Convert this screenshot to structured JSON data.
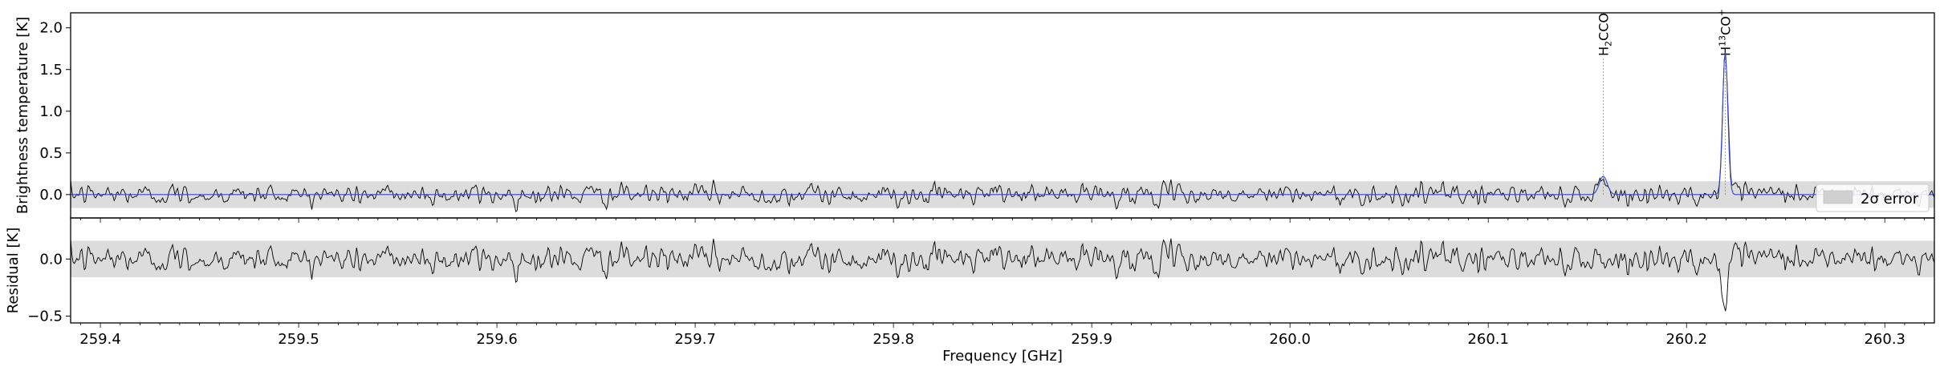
{
  "chart_data": [
    {
      "type": "line",
      "panel": "spectrum",
      "xlabel": "Frequency [GHz]",
      "ylabel": "Brightness temperature [K]",
      "xlim": [
        259.385,
        260.325
      ],
      "ylim": [
        -0.28,
        2.18
      ],
      "yticks": [
        0.0,
        0.5,
        1.0,
        1.5,
        2.0
      ],
      "ytick_labels": [
        "0.0",
        "0.5",
        "1.0",
        "1.5",
        "2.0"
      ],
      "error_band": 0.16,
      "noise_rms": 0.065,
      "legend": {
        "entries": [
          "2σ error"
        ],
        "placement": "right"
      },
      "spectral_lines": [
        {
          "label_base": "H",
          "label_sub": "2",
          "label_rest": "CCO",
          "frequency": 260.158,
          "peak": 0.22,
          "width": 0.002
        },
        {
          "label_base": "H",
          "label_sup": "13",
          "label_rest": "CO",
          "label_charge": "+",
          "frequency": 260.2195,
          "peak": 1.72,
          "width": 0.0013
        }
      ],
      "series": [
        {
          "role": "observed",
          "color": "#000000"
        },
        {
          "role": "model",
          "color": "#3344cc"
        }
      ]
    },
    {
      "type": "line",
      "panel": "residual",
      "xlabel": "Frequency [GHz]",
      "ylabel": "Residual [K]",
      "xlim": [
        259.385,
        260.325
      ],
      "ylim": [
        -0.56,
        0.36
      ],
      "yticks": [
        -0.5,
        0.0
      ],
      "ytick_labels": [
        "−0.5",
        "0.0"
      ],
      "error_band": 0.16,
      "residual_dip": {
        "frequency": 260.2195,
        "depth": -0.45
      },
      "xticks": [
        259.4,
        259.5,
        259.6,
        259.7,
        259.8,
        259.9,
        260.0,
        260.1,
        260.2,
        260.3
      ],
      "xtick_labels": [
        "259.4",
        "259.5",
        "259.6",
        "259.7",
        "259.8",
        "259.9",
        "260.0",
        "260.1",
        "260.2",
        "260.3"
      ]
    }
  ]
}
